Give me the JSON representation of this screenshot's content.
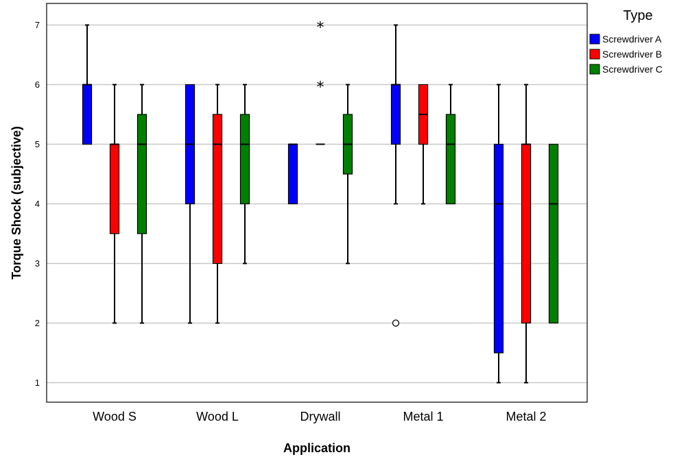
{
  "chart_data": {
    "type": "boxplot",
    "xlabel": "Application",
    "ylabel": "Torque Shock (subjective)",
    "ylim": [
      0.7,
      7.3
    ],
    "yticks": [
      "1",
      "2",
      "3",
      "4",
      "5",
      "6",
      "7"
    ],
    "grid": true,
    "legend": {
      "title": "Type",
      "position": "top-right"
    },
    "categories": [
      "Wood S",
      "Wood L",
      "Drywall",
      "Metal 1",
      "Metal 2"
    ],
    "series": [
      {
        "name": "Screwdriver A",
        "color": "#0000ff",
        "boxes": [
          {
            "category": "Wood S",
            "whisker_low": 5,
            "q1": 5,
            "median": 6,
            "q3": 6,
            "whisker_high": 7
          },
          {
            "category": "Wood L",
            "whisker_low": 2,
            "q1": 4,
            "median": 5,
            "q3": 6,
            "whisker_high": 6
          },
          {
            "category": "Drywall",
            "whisker_low": 4,
            "q1": 4,
            "median": 5,
            "q3": 5,
            "whisker_high": 5
          },
          {
            "category": "Metal 1",
            "whisker_low": 4,
            "q1": 5,
            "median": 6,
            "q3": 6,
            "whisker_high": 7,
            "outliers": [
              2
            ]
          },
          {
            "category": "Metal 2",
            "whisker_low": 1,
            "q1": 1.5,
            "median": 4,
            "q3": 5,
            "whisker_high": 6
          }
        ]
      },
      {
        "name": "Screwdriver B",
        "color": "#ff0000",
        "boxes": [
          {
            "category": "Wood S",
            "whisker_low": 2,
            "q1": 3.5,
            "median": 5,
            "q3": 5,
            "whisker_high": 6
          },
          {
            "category": "Wood L",
            "whisker_low": 2,
            "q1": 3,
            "median": 5,
            "q3": 5.5,
            "whisker_high": 6
          },
          {
            "category": "Drywall",
            "whisker_low": 5,
            "q1": 5,
            "median": 5,
            "q3": 5,
            "whisker_high": 5,
            "extremes": [
              6,
              7
            ]
          },
          {
            "category": "Metal 1",
            "whisker_low": 4,
            "q1": 5,
            "median": 5.5,
            "q3": 6,
            "whisker_high": 6
          },
          {
            "category": "Metal 2",
            "whisker_low": 1,
            "q1": 2,
            "median": 5,
            "q3": 5,
            "whisker_high": 6
          }
        ]
      },
      {
        "name": "Screwdriver C",
        "color": "#008000",
        "boxes": [
          {
            "category": "Wood S",
            "whisker_low": 2,
            "q1": 3.5,
            "median": 5,
            "q3": 5.5,
            "whisker_high": 6
          },
          {
            "category": "Wood L",
            "whisker_low": 3,
            "q1": 4,
            "median": 5,
            "q3": 5.5,
            "whisker_high": 6
          },
          {
            "category": "Drywall",
            "whisker_low": 3,
            "q1": 4.5,
            "median": 5,
            "q3": 5.5,
            "whisker_high": 6
          },
          {
            "category": "Metal 1",
            "whisker_low": 4,
            "q1": 4,
            "median": 5,
            "q3": 5.5,
            "whisker_high": 6
          },
          {
            "category": "Metal 2",
            "whisker_low": 2,
            "q1": 2,
            "median": 4,
            "q3": 5,
            "whisker_high": 5
          }
        ]
      }
    ]
  }
}
